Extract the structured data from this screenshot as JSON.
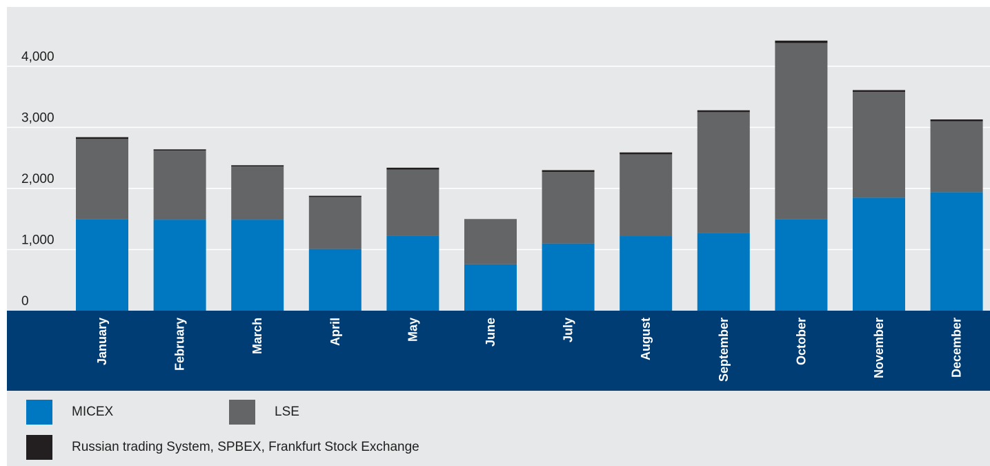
{
  "colors": {
    "panel_bg": "#e7e8e9",
    "axis_band": "#003d74",
    "gridline": "#ffffff",
    "micex": "#0078c1",
    "lse": "#646566",
    "other": "#231f20"
  },
  "chart_data": {
    "type": "bar",
    "stacked": true,
    "categories": [
      "January",
      "February",
      "March",
      "April",
      "May",
      "June",
      "July",
      "August",
      "September",
      "October",
      "November",
      "December"
    ],
    "series": [
      {
        "name": "MICEX",
        "values": [
          1500,
          1490,
          1490,
          1010,
          1230,
          760,
          1100,
          1220,
          1270,
          1500,
          1850,
          1940
        ],
        "color": "#0078c1"
      },
      {
        "name": "LSE",
        "values": [
          1310,
          1130,
          870,
          850,
          1080,
          740,
          1170,
          1340,
          1980,
          2880,
          1730,
          1160
        ],
        "color": "#646566"
      },
      {
        "name": "Russian trading System, SPBEX, Frankfurt Stock Exchange",
        "values": [
          30,
          20,
          20,
          20,
          30,
          0,
          30,
          30,
          30,
          40,
          30,
          30
        ],
        "color": "#231f20"
      }
    ],
    "y_ticks": [
      "0",
      "1,000",
      "2,000",
      "3,000",
      "4,000"
    ],
    "y_tick_values": [
      0,
      1000,
      2000,
      3000,
      4000
    ],
    "ylim": [
      0,
      4000
    ],
    "grid": true,
    "legend_position": "bottom"
  },
  "legend": [
    {
      "label": "MICEX",
      "color": "#0078c1"
    },
    {
      "label": "LSE",
      "color": "#646566"
    },
    {
      "label": "Russian trading System, SPBEX, Frankfurt Stock Exchange",
      "color": "#231f20"
    }
  ]
}
